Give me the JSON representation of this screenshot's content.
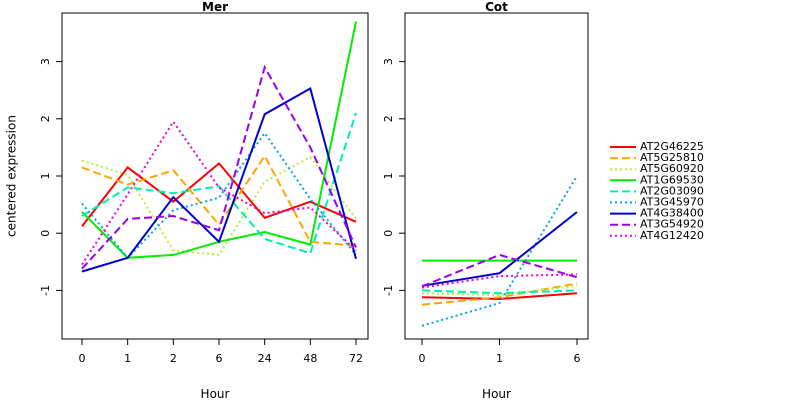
{
  "chart_data": [
    {
      "type": "line",
      "title": "Mer",
      "xlabel": "Hour",
      "ylabel": "centered expression",
      "x_categories": [
        "0",
        "1",
        "2",
        "6",
        "24",
        "48",
        "72"
      ],
      "yticks": [
        -1,
        0,
        1,
        2,
        3
      ],
      "ylim": [
        -1.85,
        3.85
      ],
      "series": [
        {
          "name": "AT2G46225",
          "values": [
            0.12,
            1.15,
            0.55,
            1.22,
            0.27,
            0.55,
            0.2
          ]
        },
        {
          "name": "AT5G25810",
          "values": [
            1.15,
            0.85,
            1.1,
            0.15,
            1.35,
            -0.15,
            -0.22
          ]
        },
        {
          "name": "AT5G60920",
          "values": [
            1.27,
            1.02,
            -0.3,
            -0.38,
            0.9,
            1.33,
            0.25
          ]
        },
        {
          "name": "AT1G69530",
          "values": [
            0.37,
            -0.43,
            -0.38,
            -0.15,
            0.02,
            -0.2,
            3.7
          ]
        },
        {
          "name": "AT2G03090",
          "values": [
            0.3,
            0.8,
            0.7,
            0.82,
            -0.1,
            -0.35,
            2.1
          ]
        },
        {
          "name": "AT3G45970",
          "values": [
            0.52,
            -0.43,
            0.4,
            0.62,
            1.75,
            0.6,
            -0.38
          ]
        },
        {
          "name": "AT4G38400",
          "values": [
            -0.67,
            -0.43,
            0.63,
            -0.15,
            2.08,
            2.53,
            -0.45
          ]
        },
        {
          "name": "AT3G54920",
          "values": [
            -0.62,
            0.25,
            0.3,
            0.05,
            2.9,
            1.5,
            -0.25
          ]
        },
        {
          "name": "AT4G12420",
          "values": [
            -0.55,
            0.68,
            1.95,
            0.8,
            0.35,
            0.45,
            -0.3
          ]
        }
      ]
    },
    {
      "type": "line",
      "title": "Cot",
      "xlabel": "Hour",
      "ylabel": "",
      "x_categories": [
        "0",
        "1",
        "6"
      ],
      "yticks": [
        -1,
        0,
        1,
        2,
        3
      ],
      "ylim": [
        -1.85,
        3.85
      ],
      "series": [
        {
          "name": "AT2G46225",
          "values": [
            -1.12,
            -1.15,
            -1.05
          ]
        },
        {
          "name": "AT5G25810",
          "values": [
            -1.25,
            -1.12,
            -0.88
          ]
        },
        {
          "name": "AT5G60920",
          "values": [
            -1.05,
            -1.08,
            -0.92
          ]
        },
        {
          "name": "AT1G69530",
          "values": [
            -0.48,
            -0.48,
            -0.48
          ]
        },
        {
          "name": "AT2G03090",
          "values": [
            -1.0,
            -1.05,
            -1.0
          ]
        },
        {
          "name": "AT3G45970",
          "values": [
            -1.62,
            -1.22,
            1.0
          ]
        },
        {
          "name": "AT4G38400",
          "values": [
            -0.92,
            -0.7,
            0.37
          ]
        },
        {
          "name": "AT3G54920",
          "values": [
            -0.93,
            -0.38,
            -0.77
          ]
        },
        {
          "name": "AT4G12420",
          "values": [
            -0.95,
            -0.75,
            -0.72
          ]
        }
      ]
    }
  ],
  "legend": {
    "placement": "right",
    "items": [
      {
        "name": "AT2G46225",
        "color": "#ff0000",
        "dash": "solid"
      },
      {
        "name": "AT5G25810",
        "color": "#ffa500",
        "dash": "dashed"
      },
      {
        "name": "AT5G60920",
        "color": "#b3ee3a",
        "dash": "dotted"
      },
      {
        "name": "AT1G69530",
        "color": "#00ee00",
        "dash": "solid"
      },
      {
        "name": "AT2G03090",
        "color": "#00eeb0",
        "dash": "dashed"
      },
      {
        "name": "AT3G45970",
        "color": "#00a5ee",
        "dash": "dotted"
      },
      {
        "name": "AT4G38400",
        "color": "#0000cd",
        "dash": "solid"
      },
      {
        "name": "AT3G54920",
        "color": "#9a00ee",
        "dash": "dashed"
      },
      {
        "name": "AT4G12420",
        "color": "#ee00d0",
        "dash": "dotted"
      }
    ]
  }
}
